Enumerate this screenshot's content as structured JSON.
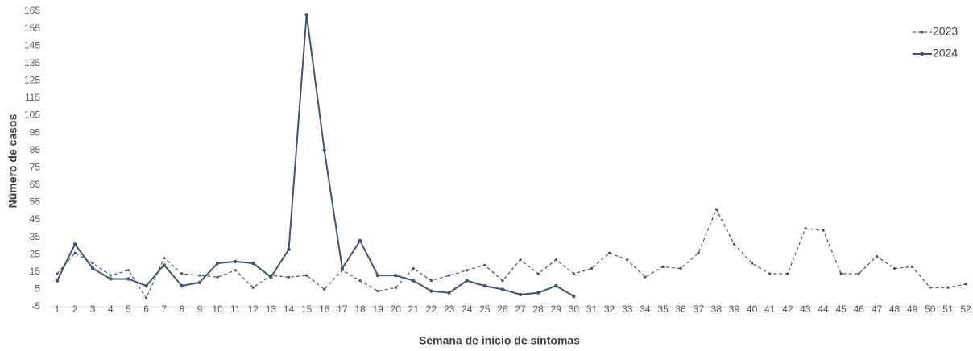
{
  "chart_data": {
    "type": "line",
    "x_label": "Semana de inicio de síntomas",
    "y_label": "Número de casos",
    "categories": [
      1,
      2,
      3,
      4,
      5,
      6,
      7,
      8,
      9,
      10,
      11,
      12,
      13,
      14,
      15,
      16,
      17,
      18,
      19,
      20,
      21,
      22,
      23,
      24,
      25,
      26,
      27,
      28,
      29,
      30,
      31,
      32,
      33,
      34,
      35,
      36,
      37,
      38,
      39,
      40,
      41,
      42,
      43,
      44,
      45,
      46,
      47,
      48,
      49,
      50,
      51,
      52
    ],
    "ylim": [
      -5,
      165
    ],
    "yticks": [
      -5,
      5,
      15,
      25,
      35,
      45,
      55,
      65,
      75,
      85,
      95,
      105,
      115,
      125,
      135,
      145,
      155,
      165
    ],
    "grid": false,
    "legend": "upper right",
    "series": [
      {
        "name": "2023",
        "color": "#44546a",
        "dashed": true,
        "values": [
          14,
          26,
          20,
          13,
          16,
          0,
          23,
          14,
          13,
          12,
          16,
          6,
          13,
          12,
          13,
          5,
          16,
          10,
          4,
          6,
          17,
          10,
          13,
          16,
          19,
          10,
          22,
          14,
          22,
          14,
          17,
          26,
          22,
          12,
          18,
          17,
          26,
          51,
          31,
          20,
          14,
          14,
          40,
          39,
          14,
          14,
          24,
          17,
          18,
          6,
          6,
          8
        ]
      },
      {
        "name": "2024",
        "color": "#44546a",
        "dashed": false,
        "values": [
          10,
          31,
          17,
          11,
          11,
          7,
          19,
          7,
          9,
          20,
          21,
          20,
          12,
          28,
          163,
          85,
          17,
          33,
          13,
          13,
          10,
          4,
          3,
          10,
          7,
          5,
          2,
          3,
          7,
          1,
          null,
          null,
          null,
          null,
          null,
          null,
          null,
          null,
          null,
          null,
          null,
          null,
          null,
          null,
          null,
          null,
          null,
          null,
          null,
          null,
          null,
          null
        ]
      }
    ]
  }
}
